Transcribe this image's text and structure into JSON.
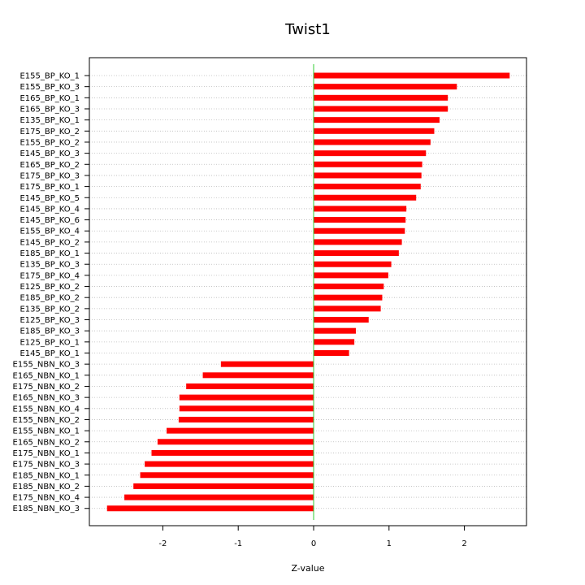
{
  "chart_data": {
    "type": "bar",
    "orientation": "horizontal",
    "title": "Twist1",
    "xlabel": "Z-value",
    "ylabel": "",
    "xlim": [
      -2.8,
      2.8
    ],
    "xticks": [
      -2,
      -1,
      0,
      1,
      2
    ],
    "xtick_labels": [
      "-2",
      "-1",
      "0",
      "1",
      "2"
    ],
    "grid": "horizontal dotted",
    "bar_color": "#ff0000",
    "zero_line_color": "#33cc33",
    "categories": [
      "E155_BP_KO_1",
      "E155_BP_KO_3",
      "E165_BP_KO_1",
      "E165_BP_KO_3",
      "E135_BP_KO_1",
      "E175_BP_KO_2",
      "E155_BP_KO_2",
      "E145_BP_KO_3",
      "E165_BP_KO_2",
      "E175_BP_KO_3",
      "E175_BP_KO_1",
      "E145_BP_KO_5",
      "E145_BP_KO_4",
      "E145_BP_KO_6",
      "E155_BP_KO_4",
      "E145_BP_KO_2",
      "E185_BP_KO_1",
      "E135_BP_KO_3",
      "E175_BP_KO_4",
      "E125_BP_KO_2",
      "E185_BP_KO_2",
      "E135_BP_KO_2",
      "E125_BP_KO_3",
      "E185_BP_KO_3",
      "E125_BP_KO_1",
      "E145_BP_KO_1",
      "E155_NBN_KO_3",
      "E165_NBN_KO_1",
      "E175_NBN_KO_2",
      "E165_NBN_KO_3",
      "E155_NBN_KO_4",
      "E155_NBN_KO_2",
      "E155_NBN_KO_1",
      "E165_NBN_KO_2",
      "E175_NBN_KO_1",
      "E175_NBN_KO_3",
      "E185_NBN_KO_1",
      "E185_NBN_KO_2",
      "E175_NBN_KO_4",
      "E185_NBN_KO_3"
    ],
    "values": [
      2.6,
      1.9,
      1.78,
      1.78,
      1.67,
      1.6,
      1.55,
      1.49,
      1.44,
      1.43,
      1.42,
      1.36,
      1.23,
      1.22,
      1.21,
      1.17,
      1.13,
      1.03,
      0.99,
      0.93,
      0.91,
      0.89,
      0.73,
      0.56,
      0.54,
      0.47,
      -1.23,
      -1.47,
      -1.69,
      -1.78,
      -1.78,
      -1.79,
      -1.95,
      -2.07,
      -2.15,
      -2.24,
      -2.3,
      -2.39,
      -2.51,
      -2.74
    ]
  }
}
